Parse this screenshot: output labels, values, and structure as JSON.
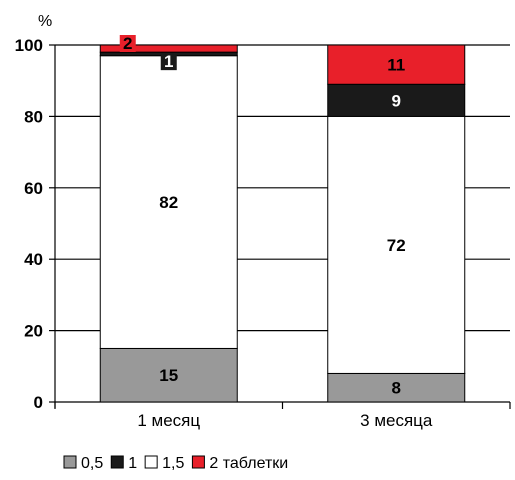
{
  "chart_data": {
    "type": "bar",
    "stacked": true,
    "y_unit_label": "%",
    "ylim": [
      0,
      100
    ],
    "yticks": [
      "0",
      "20",
      "40",
      "60",
      "80",
      "100"
    ],
    "grid": true,
    "categories": [
      "1 месяц",
      "3 месяца"
    ],
    "series": [
      {
        "name": "0,5",
        "color": "#999999",
        "values": [
          15,
          8
        ],
        "labels": [
          "15",
          "8"
        ],
        "label_color": "#000000"
      },
      {
        "name": "1,5",
        "color": "#ffffff",
        "values": [
          82,
          72
        ],
        "labels": [
          "82",
          "72"
        ],
        "label_color": "#000000"
      },
      {
        "name": "1",
        "color": "#1a1a1a",
        "values": [
          1,
          9
        ],
        "labels": [
          "1",
          "9"
        ],
        "label_color": "#ffffff"
      },
      {
        "name": "2 таблетки",
        "color": "#e8202a",
        "values": [
          2,
          11
        ],
        "labels": [
          "2",
          "11"
        ],
        "label_color": "#000000"
      }
    ],
    "legend": {
      "placement": "bottom-left",
      "order": [
        "0,5",
        "1",
        "1,5",
        "2 таблетки"
      ]
    }
  }
}
